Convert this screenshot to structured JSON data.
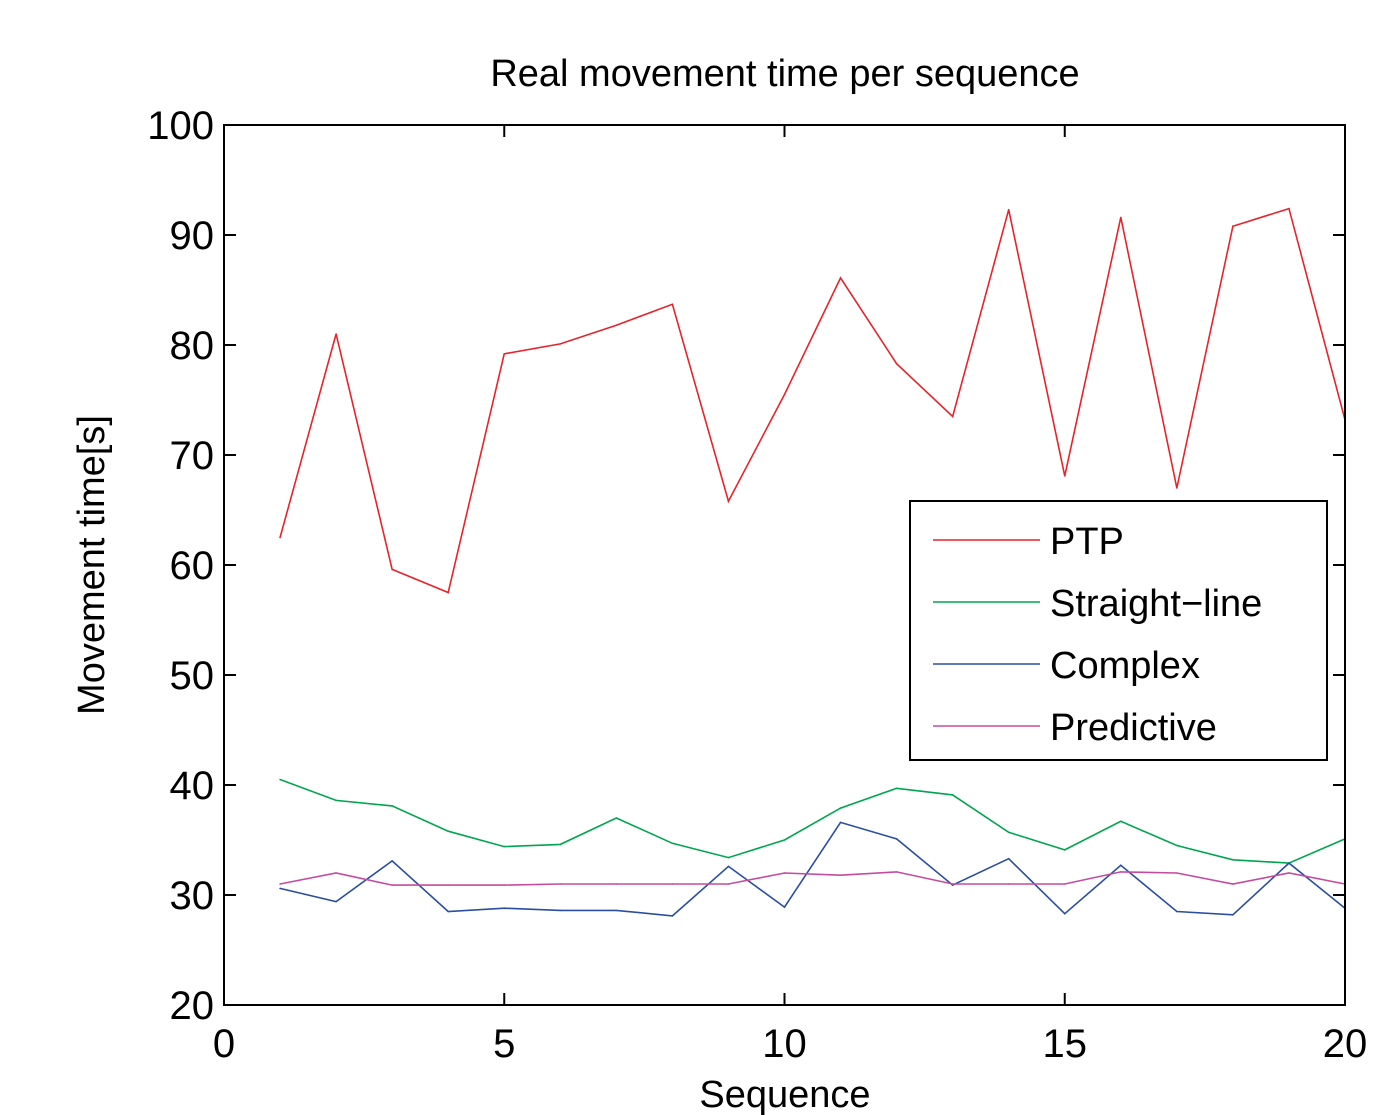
{
  "chart_data": {
    "type": "line",
    "title": "Real movement time per sequence",
    "xlabel": "Sequence",
    "ylabel": "Movement time[s]",
    "xlim": [
      0,
      20
    ],
    "ylim": [
      20,
      100
    ],
    "xticks": [
      0,
      5,
      10,
      15,
      20
    ],
    "yticks": [
      20,
      30,
      40,
      50,
      60,
      70,
      80,
      90,
      100
    ],
    "grid": false,
    "legend_position": "right",
    "x": [
      1,
      2,
      3,
      4,
      5,
      6,
      7,
      8,
      9,
      10,
      11,
      12,
      13,
      14,
      15,
      16,
      17,
      18,
      19,
      20
    ],
    "series": [
      {
        "name": "PTP",
        "color": "#e8232a",
        "values": [
          62.5,
          81.0,
          59.6,
          57.5,
          79.2,
          80.1,
          81.8,
          83.7,
          65.8,
          75.5,
          86.1,
          78.3,
          73.5,
          92.3,
          68.1,
          91.6,
          67.0,
          90.8,
          92.4,
          73.2
        ]
      },
      {
        "name": "Straight−line",
        "color": "#00a64f",
        "values": [
          40.5,
          38.6,
          38.1,
          35.8,
          34.4,
          34.6,
          37.0,
          34.7,
          33.4,
          35.0,
          37.9,
          39.7,
          39.1,
          35.7,
          34.1,
          36.7,
          34.5,
          33.2,
          32.9,
          35.1
        ]
      },
      {
        "name": "Complex",
        "color": "#2b4ea2",
        "values": [
          30.6,
          29.4,
          33.1,
          28.5,
          28.8,
          28.6,
          28.6,
          28.1,
          32.6,
          28.9,
          36.6,
          35.1,
          30.9,
          33.3,
          28.3,
          32.7,
          28.5,
          28.2,
          32.9,
          28.8
        ]
      },
      {
        "name": "Predictive",
        "color": "#c54b9f",
        "values": [
          31.0,
          32.0,
          30.9,
          30.9,
          30.9,
          31.0,
          31.0,
          31.0,
          31.0,
          32.0,
          31.8,
          32.1,
          31.0,
          31.0,
          31.0,
          32.1,
          32.0,
          31.0,
          32.0,
          31.0
        ]
      }
    ]
  }
}
